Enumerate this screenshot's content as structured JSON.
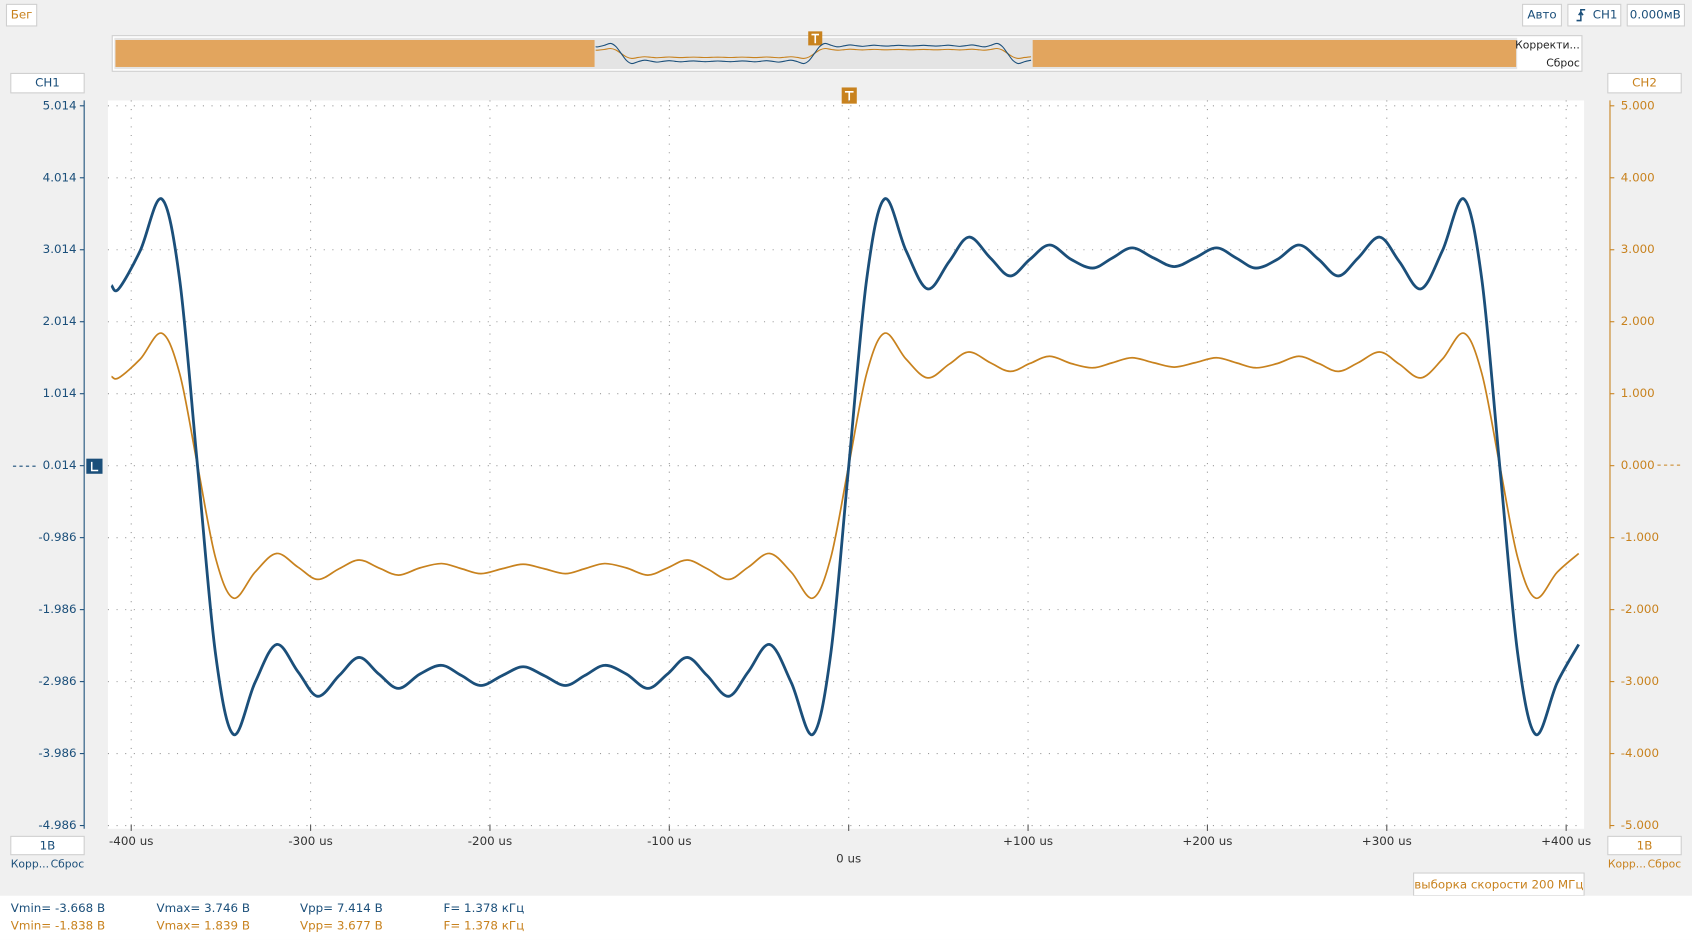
{
  "toolbar": {
    "status": "Бег",
    "mode": "Авто",
    "trigger_source": "CH1",
    "trigger_level": "0.000мВ"
  },
  "overview": {
    "correct": "Корректи...",
    "reset": "Сброс"
  },
  "channels": [
    {
      "scale": "1В",
      "correct": "Корр...",
      "reset": "Сброс"
    },
    {
      "scale": "1В",
      "correct": "Корр...",
      "reset": "Сброс"
    }
  ],
  "sample_rate": "выборка скорости 200 МГц",
  "measurements": {
    "rows": [
      [
        "Vmin= -3.668 В",
        "Vmax= 3.746 В",
        "Vpp= 7.414 В",
        "F= 1.378 кГц"
      ],
      [
        "Vmin= -1.838 В",
        "Vmax= 1.839 В",
        "Vpp= 3.677 В",
        "F= 1.378 кГц"
      ]
    ]
  },
  "chart_data": {
    "type": "line",
    "x": [
      -411,
      -407,
      -395,
      -383,
      -373,
      -363,
      -353,
      -343,
      -331,
      -319,
      -307,
      -296,
      -284,
      -273,
      -262,
      -251,
      -239,
      -227,
      -216,
      -205,
      -193,
      -181.5,
      -170,
      -158,
      -147,
      -136,
      -124,
      -112,
      -101,
      -90,
      -79,
      -67,
      -56,
      -44,
      -32,
      -20,
      -10,
      0,
      10,
      20,
      32,
      44,
      56,
      67,
      79,
      90,
      101,
      112,
      124,
      136,
      147,
      158,
      170,
      181.5,
      193,
      205,
      216,
      227,
      239,
      251,
      262,
      273,
      284,
      296,
      307,
      319,
      331,
      343,
      353,
      363,
      373,
      383,
      395,
      407
    ],
    "series": [
      {
        "name": "CH1",
        "color": "#1b4f7a",
        "values": [
          2.52,
          2.47,
          3.0,
          3.72,
          2.6,
          0,
          -2.6,
          -3.72,
          -3.0,
          -2.47,
          -2.85,
          -3.19,
          -2.9,
          -2.65,
          -2.88,
          -3.08,
          -2.88,
          -2.76,
          -2.9,
          -3.04,
          -2.9,
          -2.78,
          -2.9,
          -3.04,
          -2.9,
          -2.76,
          -2.88,
          -3.08,
          -2.88,
          -2.65,
          -2.9,
          -3.19,
          -2.85,
          -2.47,
          -3.0,
          -3.72,
          -2.6,
          0,
          2.6,
          3.72,
          3.0,
          2.47,
          2.85,
          3.19,
          2.9,
          2.65,
          2.88,
          3.08,
          2.88,
          2.76,
          2.9,
          3.04,
          2.9,
          2.78,
          2.9,
          3.04,
          2.9,
          2.76,
          2.88,
          3.08,
          2.88,
          2.65,
          2.9,
          3.19,
          2.85,
          2.47,
          3.0,
          3.72,
          2.6,
          0,
          -2.6,
          -3.72,
          -3.0,
          -2.47
        ]
      },
      {
        "name": "CH2",
        "color": "#c8821e",
        "axis": "y2",
        "values": [
          1.24,
          1.22,
          1.48,
          1.84,
          1.28,
          0,
          -1.28,
          -1.84,
          -1.48,
          -1.22,
          -1.41,
          -1.58,
          -1.43,
          -1.31,
          -1.42,
          -1.52,
          -1.42,
          -1.36,
          -1.43,
          -1.5,
          -1.43,
          -1.37,
          -1.43,
          -1.5,
          -1.43,
          -1.36,
          -1.42,
          -1.52,
          -1.42,
          -1.31,
          -1.43,
          -1.58,
          -1.41,
          -1.22,
          -1.48,
          -1.84,
          -1.28,
          0,
          1.28,
          1.84,
          1.48,
          1.22,
          1.41,
          1.58,
          1.43,
          1.31,
          1.42,
          1.52,
          1.42,
          1.36,
          1.43,
          1.5,
          1.43,
          1.37,
          1.43,
          1.5,
          1.43,
          1.36,
          1.42,
          1.52,
          1.42,
          1.31,
          1.43,
          1.58,
          1.41,
          1.22,
          1.48,
          1.84,
          1.28,
          0,
          -1.28,
          -1.84,
          -1.48,
          -1.22
        ]
      }
    ],
    "xlim": [
      -413,
      410
    ],
    "xticks": [
      {
        "value": -400,
        "label": "-400 us"
      },
      {
        "value": -300,
        "label": "-300 us"
      },
      {
        "value": -200,
        "label": "-200 us"
      },
      {
        "value": -100,
        "label": "-100 us"
      },
      {
        "value": 0,
        "label": "0 us"
      },
      {
        "value": 100,
        "label": "+100 us"
      },
      {
        "value": 200,
        "label": "+200 us"
      },
      {
        "value": 300,
        "label": "+300 us"
      },
      {
        "value": 400,
        "label": "+400 us"
      }
    ],
    "ylim": [
      -4.986,
      5.014
    ],
    "yticks": [
      5.014,
      4.014,
      3.014,
      2.014,
      1.014,
      0.014,
      -0.986,
      -1.986,
      -2.986,
      -3.986,
      -4.986
    ],
    "y2lim": [
      -5,
      5
    ],
    "y2ticks": [
      {
        "value": 5,
        "label": "5.000"
      },
      {
        "value": 4,
        "label": "4.000"
      },
      {
        "value": 3,
        "label": "3.000"
      },
      {
        "value": 2,
        "label": "2.000"
      },
      {
        "value": 1,
        "label": "1.000"
      },
      {
        "value": 0,
        "label": "0.000"
      },
      {
        "value": -1,
        "label": "-1.000"
      },
      {
        "value": -2,
        "label": "-2.000"
      },
      {
        "value": -3,
        "label": "-3.000"
      },
      {
        "value": -4,
        "label": "-4.000"
      },
      {
        "value": -5,
        "label": "-5.000"
      }
    ],
    "grid": true
  }
}
